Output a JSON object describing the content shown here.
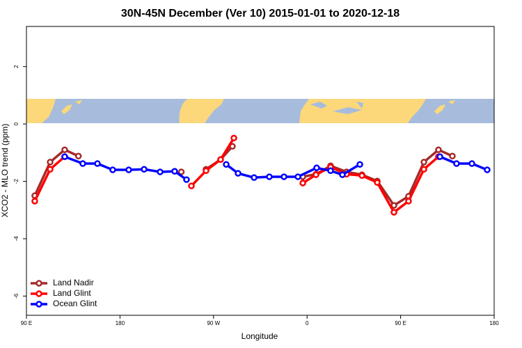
{
  "chart_data": {
    "type": "line",
    "title": "30N-45N December (Ver 10)   2015-01-01 to 2020-12-18",
    "x_label": "Longitude",
    "y_label": "XCO2 - MLO trend (ppm)",
    "xlim": [
      90,
      540
    ],
    "ylim": [
      -6.67,
      3.4
    ],
    "xticks": [
      {
        "value": 90,
        "label": "90 E"
      },
      {
        "value": 180,
        "label": "180"
      },
      {
        "value": 270,
        "label": "90 W"
      },
      {
        "value": 360,
        "label": "0"
      },
      {
        "value": 450,
        "label": "90 E"
      },
      {
        "value": 540,
        "label": "180"
      }
    ],
    "yticks": [
      2,
      0,
      -2,
      -4,
      -6
    ],
    "legend": "bottom left",
    "series": [
      {
        "name": "Land Nadir",
        "color": "#a52a2a",
        "x": [
          98,
          112.8,
          126.8,
          140,
          null,
          239,
          null,
          262.8,
          276.8,
          288.2,
          null,
          355.9,
          368.6,
          382.6,
          398,
          412.8,
          427.5,
          443.6,
          457.6,
          472.4,
          486.4,
          499.8
        ],
        "values": [
          -2.5,
          -1.33,
          -0.9,
          -1.12,
          null,
          -1.67,
          null,
          -1.58,
          -1.24,
          -0.78,
          null,
          -1.84,
          -1.75,
          -1.46,
          -1.67,
          -1.77,
          -1.99,
          -2.84,
          -2.52,
          -1.33,
          -0.9,
          -1.12
        ]
      },
      {
        "name": "Land Glint",
        "color": "#ff0000",
        "x": [
          98,
          112.8,
          126.8,
          null,
          248.7,
          262.8,
          276.8,
          289.6,
          null,
          355.9,
          368.6,
          382.6,
          398,
          412.8,
          427.5,
          443.6,
          457.6,
          472.4,
          486.4
        ],
        "values": [
          -2.69,
          -1.58,
          -1.14,
          null,
          -2.16,
          -1.63,
          -1.24,
          -0.49,
          null,
          -2.06,
          -1.77,
          -1.5,
          -1.75,
          -1.8,
          -2.04,
          -3.08,
          -2.69,
          -1.58,
          -1.14
        ]
      },
      {
        "name": "Ocean Glint",
        "color": "#0000ff",
        "x": [
          126.8,
          144.2,
          158.3,
          173,
          188.4,
          203.2,
          218.6,
          232.6,
          244,
          null,
          282.2,
          293.6,
          309,
          323.7,
          337.8,
          351.2,
          369.2,
          382.6,
          394,
          410.8,
          null,
          487.8,
          503.8,
          518.6,
          533.3
        ],
        "values": [
          -1.14,
          -1.38,
          -1.38,
          -1.6,
          -1.6,
          -1.58,
          -1.67,
          -1.65,
          -1.94,
          null,
          -1.41,
          -1.72,
          -1.87,
          -1.84,
          -1.84,
          -1.84,
          -1.53,
          -1.63,
          -1.77,
          -1.41,
          null,
          -1.14,
          -1.38,
          -1.38,
          -1.6
        ]
      }
    ]
  }
}
